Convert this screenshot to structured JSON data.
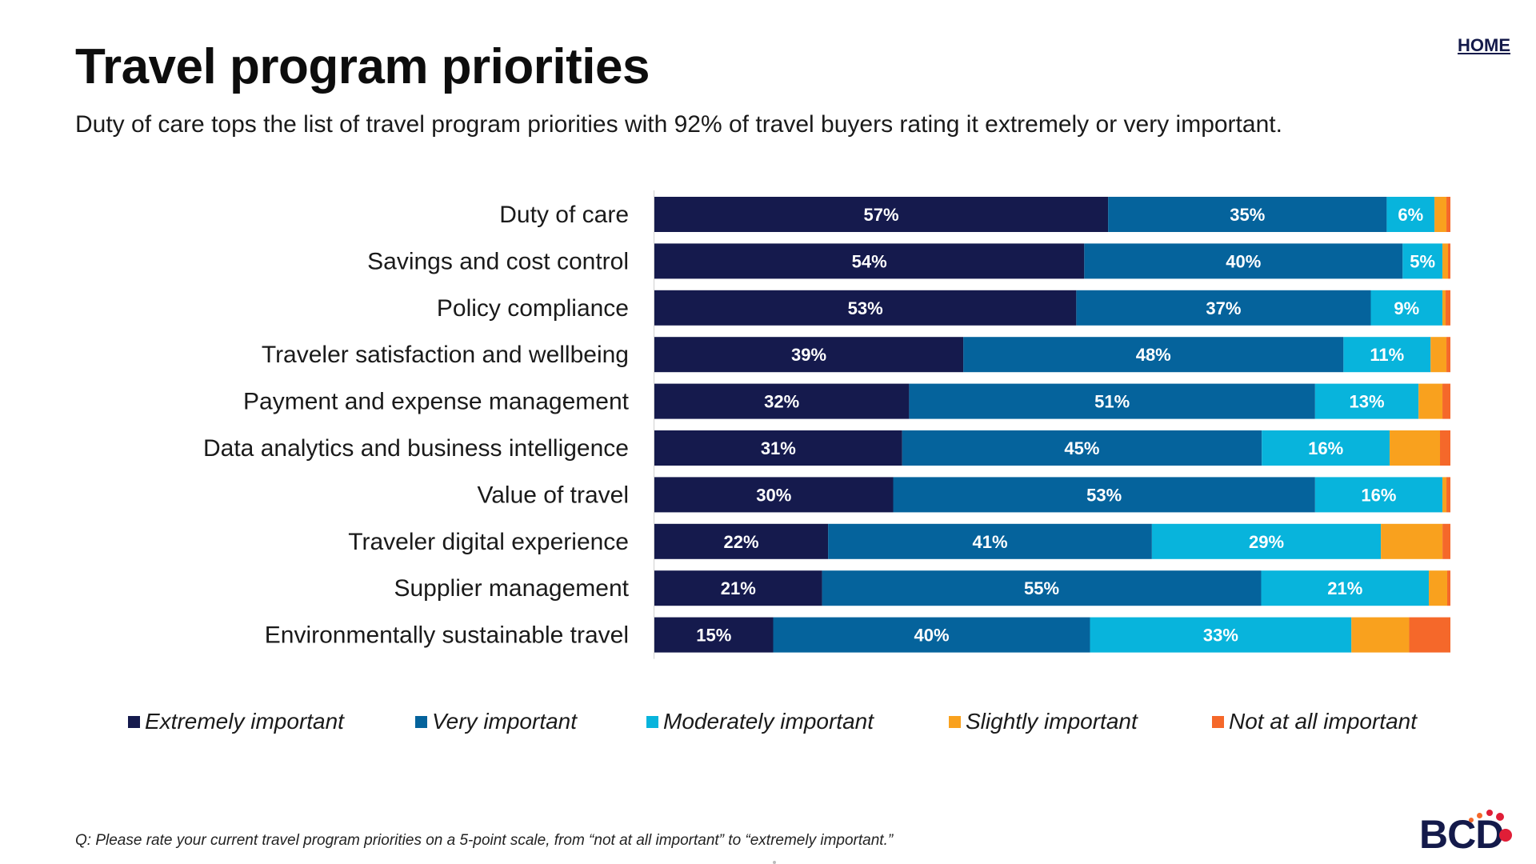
{
  "header": {
    "title": "Travel program priorities",
    "subtitle": "Duty of care tops the list of travel program priorities with 92% of travel buyers rating it extremely or very important.",
    "home_label": "HOME"
  },
  "footnote": "Q: Please rate your current travel program priorities on a 5-point scale, from “not at all important” to “extremely important.”",
  "logo": {
    "text": "BCD"
  },
  "colors": {
    "extremely": "#151a4d",
    "very": "#05639c",
    "moderately": "#08b4dc",
    "slightly": "#f9a11e",
    "not_at_all": "#f5682a",
    "logo_dot": "#e01e37",
    "logo_dot_light": "#f5682a"
  },
  "chart_data": {
    "type": "bar",
    "orientation": "horizontal",
    "stacked": true,
    "xlim": [
      0,
      100
    ],
    "legend_position": "bottom",
    "categories": [
      "Duty of care",
      "Savings and cost control",
      "Policy compliance",
      "Traveler satisfaction and wellbeing",
      "Payment and expense management",
      "Data analytics and business intelligence",
      "Value of travel",
      "Traveler digital experience",
      "Supplier management",
      "Environmentally sustainable travel"
    ],
    "series": [
      {
        "name": "Extremely important",
        "key": "extremely",
        "values": [
          57,
          54,
          53,
          39,
          32,
          31,
          30,
          22,
          21,
          15
        ],
        "labeled": true
      },
      {
        "name": "Very important",
        "key": "very",
        "values": [
          35,
          40,
          37,
          48,
          51,
          45,
          53,
          41,
          55,
          40
        ],
        "labeled": true
      },
      {
        "name": "Moderately important",
        "key": "moderately",
        "values": [
          6,
          5,
          9,
          11,
          13,
          16,
          16,
          29,
          21,
          33
        ],
        "labeled": true
      },
      {
        "name": "Slightly important",
        "key": "slightly",
        "values": [
          1.5,
          0.7,
          0.4,
          2,
          3,
          6.3,
          0.5,
          7.8,
          2.3,
          7.3
        ],
        "labeled": false
      },
      {
        "name": "Not at all important",
        "key": "not_at_all",
        "values": [
          0.5,
          0.3,
          0.6,
          0.5,
          1,
          1.3,
          0.5,
          1,
          0.4,
          5.2
        ],
        "labeled": false
      }
    ]
  }
}
